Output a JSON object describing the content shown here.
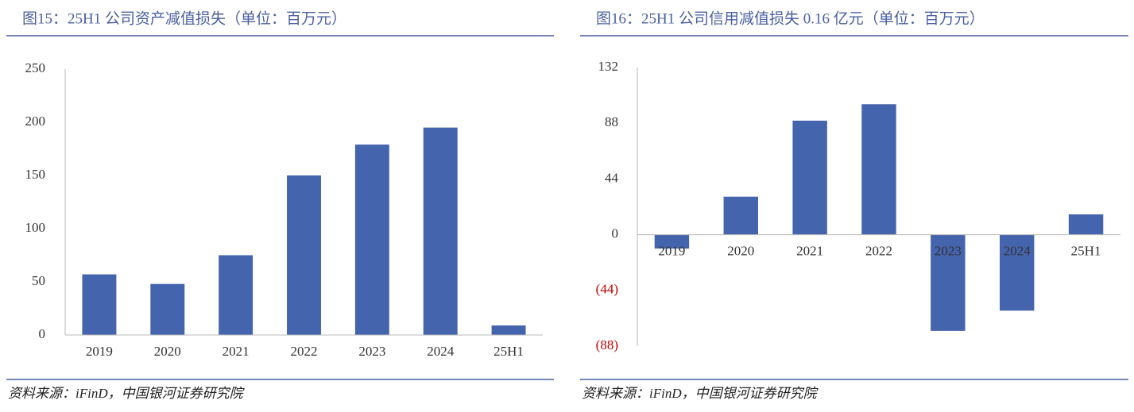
{
  "chart_data": [
    {
      "type": "bar",
      "title": "图15：25H1 公司资产减值损失（单位：百万元）",
      "categories": [
        "2019",
        "2020",
        "2021",
        "2022",
        "2023",
        "2024",
        "25H1"
      ],
      "values": [
        57,
        48,
        75,
        150,
        179,
        195,
        9
      ],
      "color": "#4464ad",
      "ylim": [
        0,
        250
      ],
      "yticks": [
        0,
        50,
        100,
        150,
        200,
        250
      ],
      "source": "资料来源：iFinD，中国银河证券研究院"
    },
    {
      "type": "bar",
      "title": "图16：25H1 公司信用减值损失 0.16 亿元（单位：百万元）",
      "categories": [
        "2019",
        "2020",
        "2021",
        "2022",
        "2023",
        "2024",
        "25H1"
      ],
      "values": [
        -11,
        30,
        90,
        103,
        -76,
        -60,
        16
      ],
      "color": "#4464ad",
      "ylim": [
        -88,
        132
      ],
      "yticks": [
        {
          "value": -88,
          "label": "(88)"
        },
        {
          "value": -44,
          "label": "(44)"
        },
        0,
        44,
        88,
        132
      ],
      "negative_label_color": "#c00000",
      "source": "资料来源：iFinD，中国银河证券研究院"
    }
  ]
}
